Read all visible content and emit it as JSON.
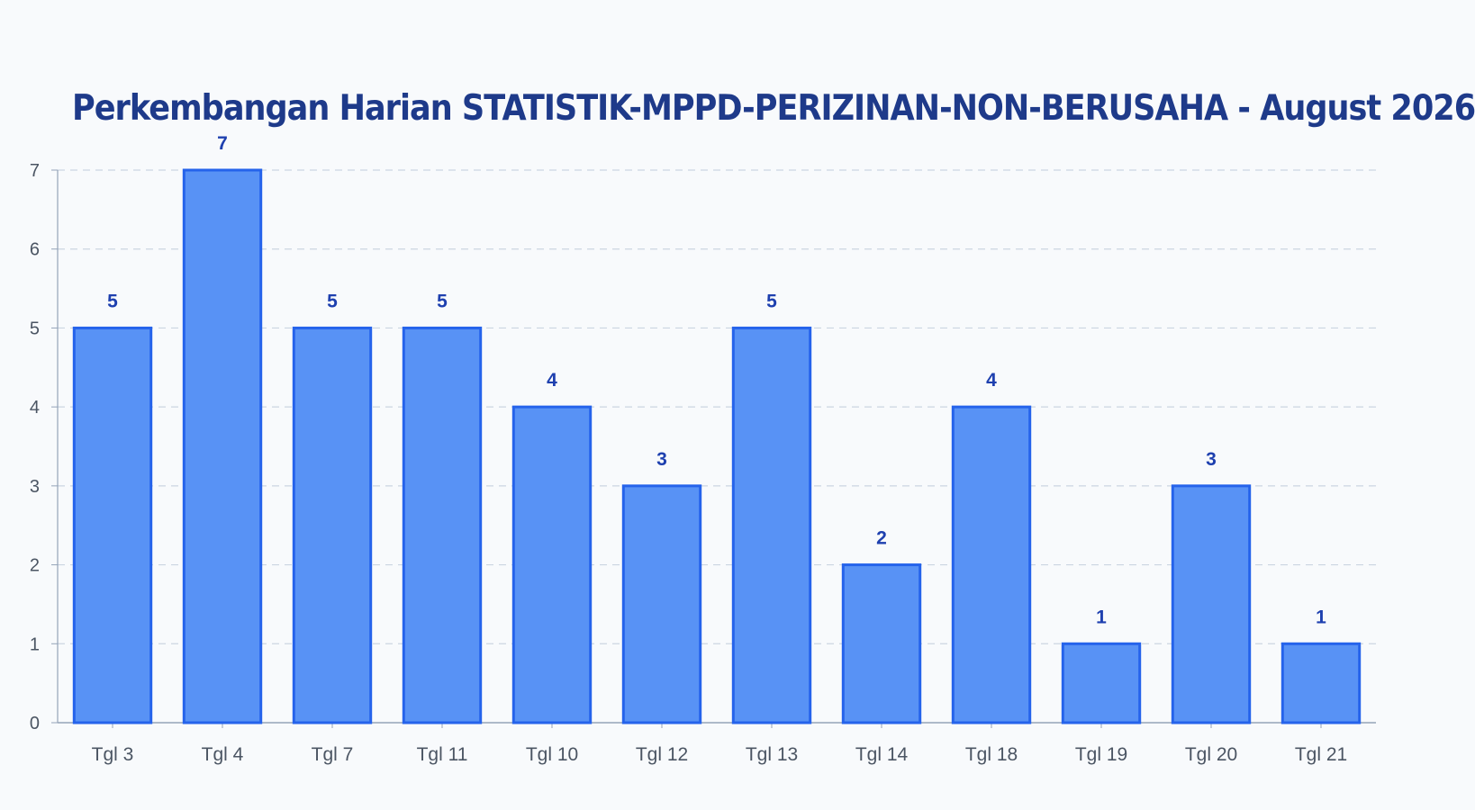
{
  "chart_data": {
    "type": "bar",
    "title": "Perkembangan Harian STATISTIK-MPPD-PERIZINAN-NON-BERUSAHA - August 2026",
    "categories": [
      "Tgl 3",
      "Tgl 4",
      "Tgl 7",
      "Tgl 11",
      "Tgl 10",
      "Tgl 12",
      "Tgl 13",
      "Tgl 14",
      "Tgl 18",
      "Tgl 19",
      "Tgl 20",
      "Tgl 21"
    ],
    "values": [
      5,
      7,
      5,
      5,
      4,
      3,
      5,
      2,
      4,
      1,
      3,
      1
    ],
    "xlabel": "",
    "ylabel": "",
    "ylim": [
      0,
      7
    ],
    "yticks": [
      0,
      1,
      2,
      3,
      4,
      5,
      6,
      7
    ],
    "grid": true,
    "data_labels": true,
    "colors": {
      "bar_fill": "#5892f5",
      "bar_stroke": "#2563eb",
      "title": "#1e3a8a",
      "value_label": "#1e40af",
      "grid": "#cbd5e1",
      "axis": "#94a3b8"
    }
  }
}
